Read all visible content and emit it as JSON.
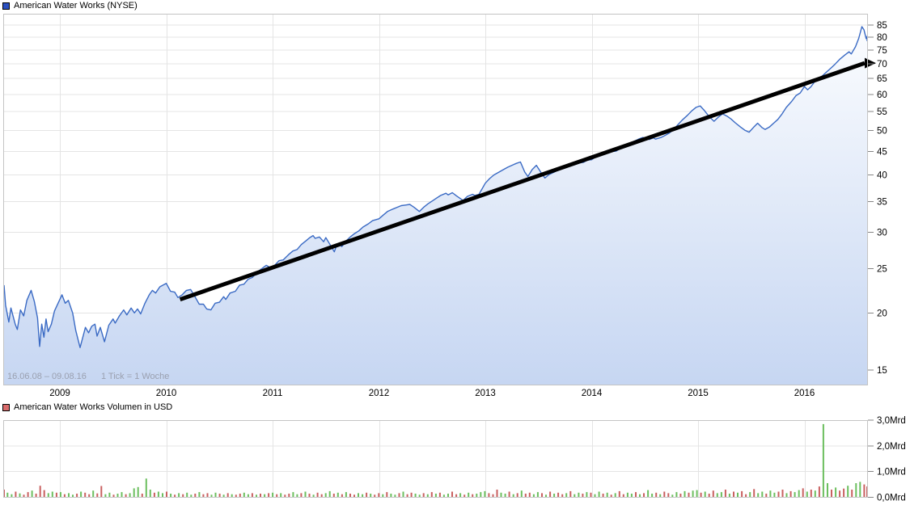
{
  "price_chart": {
    "title": "American Water Works (NYSE)",
    "legend_color": "#2b50c0",
    "footnote_range": "16.06.08 – 09.08.16",
    "footnote_tick": "1 Tick = 1 Woche",
    "y_axis_labels": [
      "85",
      "80",
      "75",
      "70",
      "65",
      "60",
      "55",
      "50",
      "45",
      "40",
      "35",
      "30",
      "25",
      "20",
      "15"
    ],
    "x_axis_labels": [
      "2009",
      "2010",
      "2011",
      "2012",
      "2013",
      "2014",
      "2015",
      "2016"
    ]
  },
  "volume_chart": {
    "title": "American Water Works Volumen in USD",
    "legend_color": "#d96b6b",
    "y_axis_labels": [
      "3,0Mrd",
      "2,0Mrd",
      "1,0Mrd",
      "0,0Mrd"
    ]
  },
  "chart_data": [
    {
      "type": "line",
      "title": "American Water Works (NYSE) weekly share price in USD",
      "y_scale": "log",
      "x_range": [
        2008.46,
        2016.6
      ],
      "ylim": [
        13.9,
        89.8
      ],
      "y_ticks": [
        15,
        20,
        25,
        30,
        35,
        40,
        45,
        50,
        55,
        60,
        65,
        70,
        75,
        80,
        85
      ],
      "x_ticks": [
        2009,
        2010,
        2011,
        2012,
        2013,
        2014,
        2015,
        2016
      ],
      "line_color": "#3a6ac4",
      "area_gradient_top": "#fdfeff",
      "area_gradient_bottom": "#c6d6f2",
      "trend_line": {
        "t1": 2010.13,
        "p1": 21.4,
        "t2": 2016.6,
        "p2": 70.2,
        "color": "#000000",
        "width": 5
      },
      "points": [
        [
          2008.46,
          23.0
        ],
        [
          2008.49,
          20.8
        ],
        [
          2008.52,
          19.1
        ],
        [
          2008.54,
          20.5
        ],
        [
          2008.58,
          18.9
        ],
        [
          2008.6,
          18.4
        ],
        [
          2008.63,
          20.3
        ],
        [
          2008.66,
          19.7
        ],
        [
          2008.69,
          21.3
        ],
        [
          2008.73,
          22.4
        ],
        [
          2008.76,
          21.2
        ],
        [
          2008.79,
          19.5
        ],
        [
          2008.81,
          16.9
        ],
        [
          2008.83,
          18.9
        ],
        [
          2008.85,
          17.7
        ],
        [
          2008.87,
          19.4
        ],
        [
          2008.89,
          18.2
        ],
        [
          2008.92,
          18.9
        ],
        [
          2008.95,
          20.2
        ],
        [
          2009.0,
          21.4
        ],
        [
          2009.02,
          21.9
        ],
        [
          2009.05,
          21.0
        ],
        [
          2009.08,
          21.3
        ],
        [
          2009.12,
          20.0
        ],
        [
          2009.15,
          18.3
        ],
        [
          2009.19,
          16.8
        ],
        [
          2009.24,
          18.6
        ],
        [
          2009.27,
          18.1
        ],
        [
          2009.3,
          18.7
        ],
        [
          2009.33,
          18.9
        ],
        [
          2009.35,
          17.8
        ],
        [
          2009.38,
          18.6
        ],
        [
          2009.42,
          17.3
        ],
        [
          2009.46,
          18.8
        ],
        [
          2009.5,
          19.4
        ],
        [
          2009.52,
          19.0
        ],
        [
          2009.56,
          19.7
        ],
        [
          2009.6,
          20.3
        ],
        [
          2009.63,
          19.8
        ],
        [
          2009.67,
          20.5
        ],
        [
          2009.7,
          20.0
        ],
        [
          2009.73,
          20.4
        ],
        [
          2009.76,
          19.9
        ],
        [
          2009.8,
          21.0
        ],
        [
          2009.84,
          21.9
        ],
        [
          2009.87,
          22.4
        ],
        [
          2009.9,
          22.1
        ],
        [
          2009.94,
          22.8
        ],
        [
          2010.0,
          23.2
        ],
        [
          2010.04,
          22.3
        ],
        [
          2010.08,
          22.2
        ],
        [
          2010.11,
          21.6
        ],
        [
          2010.15,
          21.9
        ],
        [
          2010.19,
          22.4
        ],
        [
          2010.23,
          22.5
        ],
        [
          2010.27,
          21.7
        ],
        [
          2010.31,
          20.9
        ],
        [
          2010.35,
          20.9
        ],
        [
          2010.38,
          20.4
        ],
        [
          2010.42,
          20.3
        ],
        [
          2010.46,
          21.0
        ],
        [
          2010.5,
          21.1
        ],
        [
          2010.54,
          21.7
        ],
        [
          2010.56,
          21.4
        ],
        [
          2010.6,
          22.1
        ],
        [
          2010.65,
          22.3
        ],
        [
          2010.69,
          23.0
        ],
        [
          2010.73,
          23.1
        ],
        [
          2010.77,
          23.7
        ],
        [
          2010.81,
          23.9
        ],
        [
          2010.85,
          24.5
        ],
        [
          2010.9,
          25.0
        ],
        [
          2010.94,
          25.4
        ],
        [
          2010.98,
          25.1
        ],
        [
          2011.02,
          25.4
        ],
        [
          2011.06,
          26.0
        ],
        [
          2011.1,
          26.1
        ],
        [
          2011.15,
          26.8
        ],
        [
          2011.19,
          27.3
        ],
        [
          2011.23,
          27.5
        ],
        [
          2011.27,
          28.2
        ],
        [
          2011.31,
          28.7
        ],
        [
          2011.35,
          29.2
        ],
        [
          2011.38,
          29.5
        ],
        [
          2011.4,
          29.1
        ],
        [
          2011.44,
          29.3
        ],
        [
          2011.48,
          28.6
        ],
        [
          2011.5,
          29.2
        ],
        [
          2011.54,
          28.2
        ],
        [
          2011.58,
          27.2
        ],
        [
          2011.6,
          28.0
        ],
        [
          2011.63,
          28.4
        ],
        [
          2011.65,
          27.9
        ],
        [
          2011.69,
          28.7
        ],
        [
          2011.73,
          29.3
        ],
        [
          2011.77,
          29.8
        ],
        [
          2011.81,
          30.2
        ],
        [
          2011.85,
          30.8
        ],
        [
          2011.9,
          31.3
        ],
        [
          2011.94,
          31.8
        ],
        [
          2012.0,
          32.1
        ],
        [
          2012.04,
          32.7
        ],
        [
          2012.08,
          33.3
        ],
        [
          2012.13,
          33.7
        ],
        [
          2012.17,
          34.0
        ],
        [
          2012.21,
          34.3
        ],
        [
          2012.25,
          34.4
        ],
        [
          2012.29,
          34.5
        ],
        [
          2012.33,
          34.0
        ],
        [
          2012.38,
          33.3
        ],
        [
          2012.42,
          34.0
        ],
        [
          2012.46,
          34.6
        ],
        [
          2012.5,
          35.1
        ],
        [
          2012.54,
          35.6
        ],
        [
          2012.58,
          36.1
        ],
        [
          2012.63,
          36.5
        ],
        [
          2012.65,
          36.2
        ],
        [
          2012.69,
          36.6
        ],
        [
          2012.73,
          36.0
        ],
        [
          2012.79,
          35.2
        ],
        [
          2012.83,
          35.9
        ],
        [
          2012.88,
          36.3
        ],
        [
          2012.9,
          36.1
        ],
        [
          2012.94,
          36.3
        ],
        [
          2013.0,
          38.4
        ],
        [
          2013.04,
          39.3
        ],
        [
          2013.08,
          40.0
        ],
        [
          2013.13,
          40.6
        ],
        [
          2013.17,
          41.1
        ],
        [
          2013.21,
          41.6
        ],
        [
          2013.25,
          42.0
        ],
        [
          2013.29,
          42.4
        ],
        [
          2013.33,
          42.7
        ],
        [
          2013.37,
          40.6
        ],
        [
          2013.4,
          39.7
        ],
        [
          2013.44,
          41.1
        ],
        [
          2013.48,
          42.0
        ],
        [
          2013.52,
          40.6
        ],
        [
          2013.56,
          39.4
        ],
        [
          2013.6,
          40.1
        ],
        [
          2013.65,
          40.6
        ],
        [
          2013.69,
          41.1
        ],
        [
          2013.73,
          41.6
        ],
        [
          2013.77,
          42.0
        ],
        [
          2013.81,
          42.4
        ],
        [
          2013.85,
          42.8
        ],
        [
          2013.88,
          42.5
        ],
        [
          2013.92,
          42.6
        ],
        [
          2013.96,
          43.1
        ],
        [
          2014.0,
          43.2
        ],
        [
          2014.04,
          43.9
        ],
        [
          2014.08,
          44.5
        ],
        [
          2014.13,
          45.1
        ],
        [
          2014.17,
          45.4
        ],
        [
          2014.19,
          45.0
        ],
        [
          2014.23,
          45.1
        ],
        [
          2014.27,
          45.8
        ],
        [
          2014.31,
          46.4
        ],
        [
          2014.35,
          46.9
        ],
        [
          2014.4,
          47.4
        ],
        [
          2014.44,
          47.9
        ],
        [
          2014.48,
          48.3
        ],
        [
          2014.52,
          48.1
        ],
        [
          2014.54,
          47.8
        ],
        [
          2014.58,
          48.2
        ],
        [
          2014.6,
          47.9
        ],
        [
          2014.65,
          48.3
        ],
        [
          2014.69,
          48.8
        ],
        [
          2014.73,
          49.4
        ],
        [
          2014.77,
          50.3
        ],
        [
          2014.81,
          51.5
        ],
        [
          2014.85,
          52.7
        ],
        [
          2014.9,
          54.0
        ],
        [
          2014.94,
          55.2
        ],
        [
          2014.98,
          56.2
        ],
        [
          2015.02,
          56.6
        ],
        [
          2015.06,
          55.3
        ],
        [
          2015.1,
          53.8
        ],
        [
          2015.15,
          52.4
        ],
        [
          2015.19,
          53.5
        ],
        [
          2015.23,
          54.4
        ],
        [
          2015.27,
          53.8
        ],
        [
          2015.31,
          53.0
        ],
        [
          2015.35,
          52.0
        ],
        [
          2015.4,
          50.9
        ],
        [
          2015.44,
          50.1
        ],
        [
          2015.48,
          49.6
        ],
        [
          2015.52,
          50.8
        ],
        [
          2015.56,
          51.9
        ],
        [
          2015.6,
          50.8
        ],
        [
          2015.63,
          50.3
        ],
        [
          2015.67,
          50.9
        ],
        [
          2015.71,
          51.9
        ],
        [
          2015.75,
          52.9
        ],
        [
          2015.79,
          54.4
        ],
        [
          2015.83,
          56.2
        ],
        [
          2015.88,
          57.9
        ],
        [
          2015.92,
          59.6
        ],
        [
          2015.96,
          60.4
        ],
        [
          2016.0,
          62.4
        ],
        [
          2016.03,
          61.4
        ],
        [
          2016.06,
          62.3
        ],
        [
          2016.1,
          64.1
        ],
        [
          2016.13,
          64.9
        ],
        [
          2016.17,
          65.9
        ],
        [
          2016.21,
          67.2
        ],
        [
          2016.25,
          68.5
        ],
        [
          2016.29,
          69.9
        ],
        [
          2016.33,
          71.5
        ],
        [
          2016.38,
          73.1
        ],
        [
          2016.42,
          74.3
        ],
        [
          2016.44,
          73.5
        ],
        [
          2016.48,
          76.2
        ],
        [
          2016.51,
          79.5
        ],
        [
          2016.54,
          84.3
        ],
        [
          2016.56,
          83.0
        ],
        [
          2016.58,
          79.4
        ],
        [
          2016.59,
          80.3
        ],
        [
          2016.6,
          78.4
        ]
      ]
    },
    {
      "type": "bar",
      "title": "American Water Works Volumen in USD (Mrd, weekly)",
      "x_range": [
        2008.47,
        2016.6
      ],
      "ylim": [
        0,
        3.0
      ],
      "y_ticks": [
        0,
        1.0,
        2.0,
        3.0
      ],
      "color_up": "#6cbf5f",
      "color_down": "#c96060",
      "values": [
        [
          0.3,
          0.18,
          0.12,
          0.22,
          0.15,
          0.1,
          0.2,
          0.26,
          0.14,
          0.45,
          0.28,
          0.16,
          0.22,
          0.18
        ],
        [
          0.2,
          0.12,
          0.16,
          0.1,
          0.14,
          0.22,
          0.18,
          0.12,
          0.26,
          0.15,
          0.44,
          0.12,
          0.18,
          0.1,
          0.14,
          0.2,
          0.12,
          0.16,
          0.35,
          0.4,
          0.14,
          0.73,
          0.3,
          0.18,
          0.22,
          0.16
        ],
        [
          0.22,
          0.14,
          0.1,
          0.16,
          0.12,
          0.18,
          0.1,
          0.14,
          0.2,
          0.12,
          0.16,
          0.1,
          0.18,
          0.14,
          0.1,
          0.16,
          0.12,
          0.1,
          0.14,
          0.18,
          0.12,
          0.16,
          0.1,
          0.14,
          0.12,
          0.16
        ],
        [
          0.18,
          0.12,
          0.16,
          0.1,
          0.14,
          0.2,
          0.12,
          0.16,
          0.22,
          0.14,
          0.1,
          0.18,
          0.12,
          0.16,
          0.24,
          0.14,
          0.18,
          0.12,
          0.2,
          0.14,
          0.1,
          0.16,
          0.12,
          0.18,
          0.14,
          0.1
        ],
        [
          0.16,
          0.12,
          0.2,
          0.14,
          0.1,
          0.16,
          0.22,
          0.12,
          0.18,
          0.14,
          0.1,
          0.16,
          0.12,
          0.2,
          0.14,
          0.18,
          0.1,
          0.14,
          0.22,
          0.12,
          0.16,
          0.1,
          0.18,
          0.12,
          0.14,
          0.2
        ],
        [
          0.24,
          0.16,
          0.12,
          0.3,
          0.18,
          0.14,
          0.22,
          0.12,
          0.16,
          0.26,
          0.14,
          0.18,
          0.12,
          0.2,
          0.16,
          0.1,
          0.22,
          0.14,
          0.18,
          0.12,
          0.16,
          0.24,
          0.12,
          0.18,
          0.14,
          0.2
        ],
        [
          0.18,
          0.12,
          0.22,
          0.14,
          0.18,
          0.1,
          0.16,
          0.24,
          0.12,
          0.18,
          0.14,
          0.2,
          0.12,
          0.16,
          0.28,
          0.14,
          0.18,
          0.12,
          0.22,
          0.16,
          0.1,
          0.2,
          0.14,
          0.24,
          0.18,
          0.26
        ],
        [
          0.28,
          0.18,
          0.22,
          0.14,
          0.26,
          0.16,
          0.2,
          0.3,
          0.14,
          0.22,
          0.18,
          0.24,
          0.12,
          0.2,
          0.32,
          0.16,
          0.22,
          0.14,
          0.26,
          0.18,
          0.22,
          0.3,
          0.16,
          0.24,
          0.2,
          0.28
        ],
        [
          0.35,
          0.22,
          0.3,
          0.26,
          0.42,
          2.85,
          0.55,
          0.3,
          0.38,
          0.26,
          0.34,
          0.45,
          0.3,
          0.55,
          0.6,
          0.5,
          0.42
        ]
      ],
      "colors": [
        "rggrgrrgrrrggr",
        "grggrgrrgrrggrggrgggrggrgg",
        "rgrgrggrgrrggrgrgrrggrgrgr",
        "grgrrggrgrgrrggrgrgrrggrgr",
        "rgrggrgrrggrgrgrggrrgrgrgg",
        "grrrggrgrgrrggrgrgrrgrggrg",
        "rggrgrgrrggrgrggrgrrggrgrg",
        "grgrrggrgrgrrgrggrggrrgrgg",
        "rgrgrggrgrrgrggrr"
      ]
    }
  ]
}
